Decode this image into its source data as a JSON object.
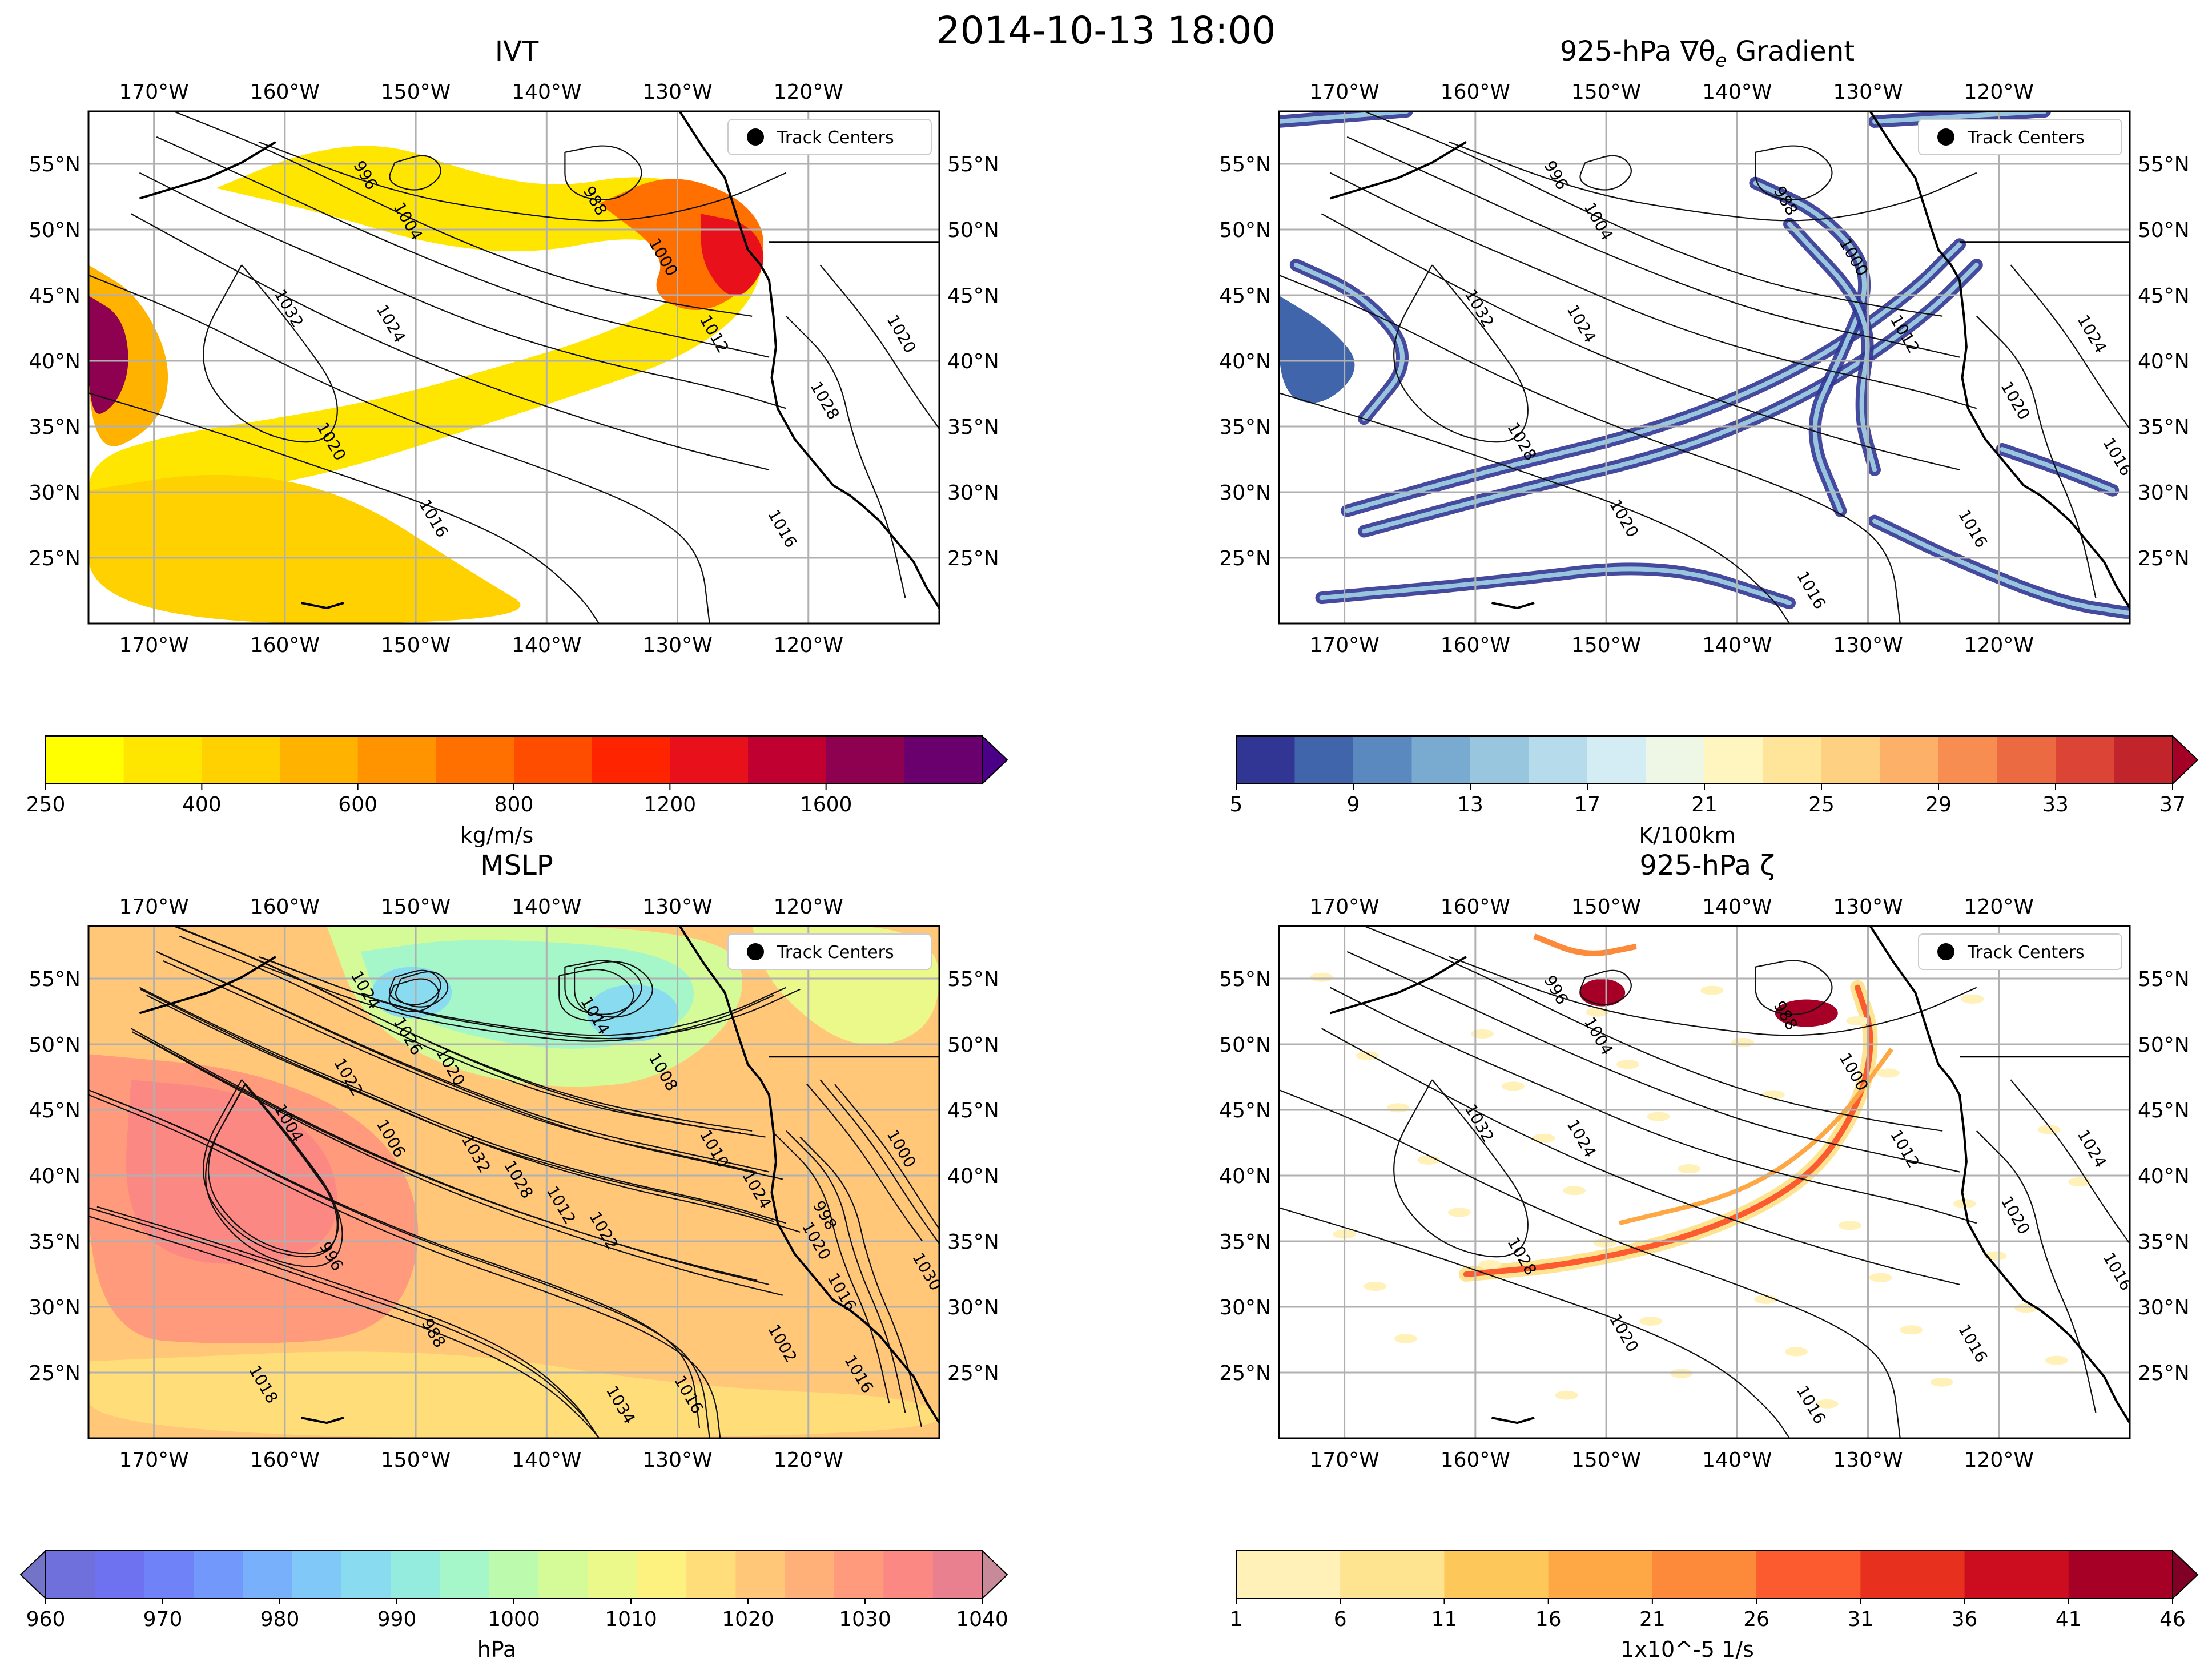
{
  "suptitle": "2014-10-13 18:00",
  "axes": {
    "lon_ticks": [
      "170°W",
      "160°W",
      "150°W",
      "140°W",
      "130°W",
      "120°W"
    ],
    "lat_ticks": [
      "55°N",
      "50°N",
      "45°N",
      "40°N",
      "35°N",
      "30°N",
      "25°N"
    ],
    "lon_values": [
      -170,
      -160,
      -150,
      -140,
      -130,
      -120
    ],
    "lat_values": [
      55,
      50,
      45,
      40,
      35,
      30,
      25
    ],
    "lon_range": [
      -175,
      -110
    ],
    "lat_range": [
      20,
      59
    ]
  },
  "legend": {
    "label": "Track Centers"
  },
  "panels": [
    {
      "title": "IVT",
      "field": "ivt",
      "contour_labels": [
        "996",
        "1004",
        "988",
        "1000",
        "1032",
        "1024",
        "1012",
        "1020",
        "1028",
        "1020",
        "1016",
        "1016"
      ],
      "colorbar": {
        "label": "kg/m/s",
        "ticks": [
          "250",
          "400",
          "600",
          "800",
          "1200",
          "1600"
        ],
        "colors": [
          "#ffff00",
          "#ffe600",
          "#ffd100",
          "#ffb300",
          "#ff9400",
          "#ff7000",
          "#ff4d00",
          "#ff2400",
          "#e8101a",
          "#c00030",
          "#8e0050",
          "#6a006e",
          "#4b0088"
        ],
        "extend": "max"
      }
    },
    {
      "title": "925-hPa ∇θe Gradient",
      "field": "theta_e_gradient",
      "contour_labels": [
        "996",
        "1004",
        "988",
        "1000",
        "1032",
        "1024",
        "1012",
        "1024",
        "1020",
        "1028",
        "1020",
        "1016",
        "1016",
        "1016"
      ],
      "colorbar": {
        "label": "K/100km",
        "ticks": [
          "5",
          "9",
          "13",
          "17",
          "21",
          "25",
          "29",
          "33",
          "37"
        ],
        "colors": [
          "#313695",
          "#4065ab",
          "#5a89bf",
          "#79aacf",
          "#98c6df",
          "#b6dceb",
          "#d4ecf3",
          "#eef7e6",
          "#fff6bf",
          "#fee59a",
          "#fed081",
          "#fdb067",
          "#f88d52",
          "#ec6a41",
          "#dc4436",
          "#c2242b",
          "#a50026"
        ],
        "extend": "max"
      }
    },
    {
      "title": "MSLP",
      "field": "mslp",
      "contour_labels": [
        "1024",
        "1026",
        "1014",
        "1008",
        "1004",
        "1006",
        "1010",
        "1000",
        "998",
        "996",
        "988",
        "1002",
        "1034",
        "1030",
        "1032",
        "1028",
        "1012",
        "1022",
        "1022",
        "1020",
        "1024",
        "1020",
        "1016",
        "1018",
        "1016",
        "1016"
      ],
      "colorbar": {
        "label": "hPa",
        "ticks": [
          "960",
          "970",
          "980",
          "990",
          "1000",
          "1010",
          "1020",
          "1030",
          "1040"
        ],
        "colors": [
          "#7373c8",
          "#7070dc",
          "#6e72f0",
          "#6f82f8",
          "#7398fb",
          "#79b0fb",
          "#80c8f8",
          "#89dcef",
          "#94ecdf",
          "#a5f6c8",
          "#bcfaad",
          "#d4fb98",
          "#ebf98a",
          "#fdf17f",
          "#ffde79",
          "#ffc777",
          "#ffb079",
          "#ff9a7c",
          "#fb8882",
          "#e98090",
          "#c88a98"
        ],
        "extend": "both"
      }
    },
    {
      "title": "925-hPa ζ",
      "field": "vorticity",
      "contour_labels": [
        "996",
        "1004",
        "988",
        "1000",
        "1032",
        "1024",
        "1012",
        "1024",
        "1020",
        "1028",
        "1020",
        "1016",
        "1016",
        "1016"
      ],
      "colorbar": {
        "label": "1x10^-5 1/s",
        "ticks": [
          "1",
          "6",
          "11",
          "16",
          "21",
          "26",
          "31",
          "36",
          "41",
          "46"
        ],
        "colors": [
          "#fff1b8",
          "#fee390",
          "#fec75a",
          "#fea745",
          "#fd8a3b",
          "#fb5b2e",
          "#e8301f",
          "#cc0d1f",
          "#a60026",
          "#800026"
        ],
        "extend": "max"
      }
    }
  ]
}
